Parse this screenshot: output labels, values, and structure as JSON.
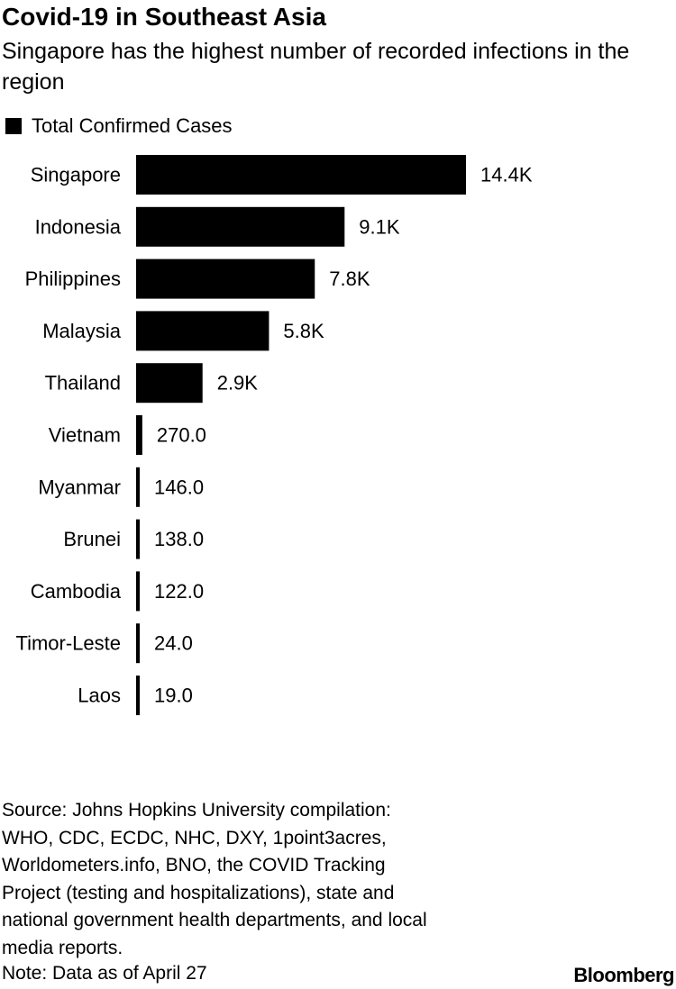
{
  "chart_data": {
    "type": "bar",
    "orientation": "horizontal",
    "title": "Covid-19 in Southeast Asia",
    "subtitle": "Singapore has the highest number of recorded infections in the region",
    "legend": {
      "position": "top-left",
      "entries": [
        "Total Confirmed Cases"
      ]
    },
    "categories": [
      "Singapore",
      "Indonesia",
      "Philippines",
      "Malaysia",
      "Thailand",
      "Vietnam",
      "Myanmar",
      "Brunei",
      "Cambodia",
      "Timor-Leste",
      "Laos"
    ],
    "series": [
      {
        "name": "Total Confirmed Cases",
        "color": "#000000",
        "values": [
          14400,
          9100,
          7800,
          5800,
          2900,
          270,
          146,
          138,
          122,
          24,
          19
        ],
        "labels": [
          "14.4K",
          "9.1K",
          "7.8K",
          "5.8K",
          "2.9K",
          "270.0",
          "146.0",
          "138.0",
          "122.0",
          "24.0",
          "19.0"
        ]
      }
    ],
    "xlim": [
      0,
      14400
    ],
    "grid": false
  },
  "footer": {
    "source_lines": [
      "Source: Johns Hopkins University compilation:",
      "WHO, CDC, ECDC, NHC, DXY, 1point3acres,",
      "Worldometers.info, BNO, the COVID Tracking",
      "Project (testing and hospitalizations), state and",
      "national government health departments, and local",
      "media reports."
    ],
    "note": "Note: Data as of April 27",
    "brand": "Bloomberg"
  }
}
